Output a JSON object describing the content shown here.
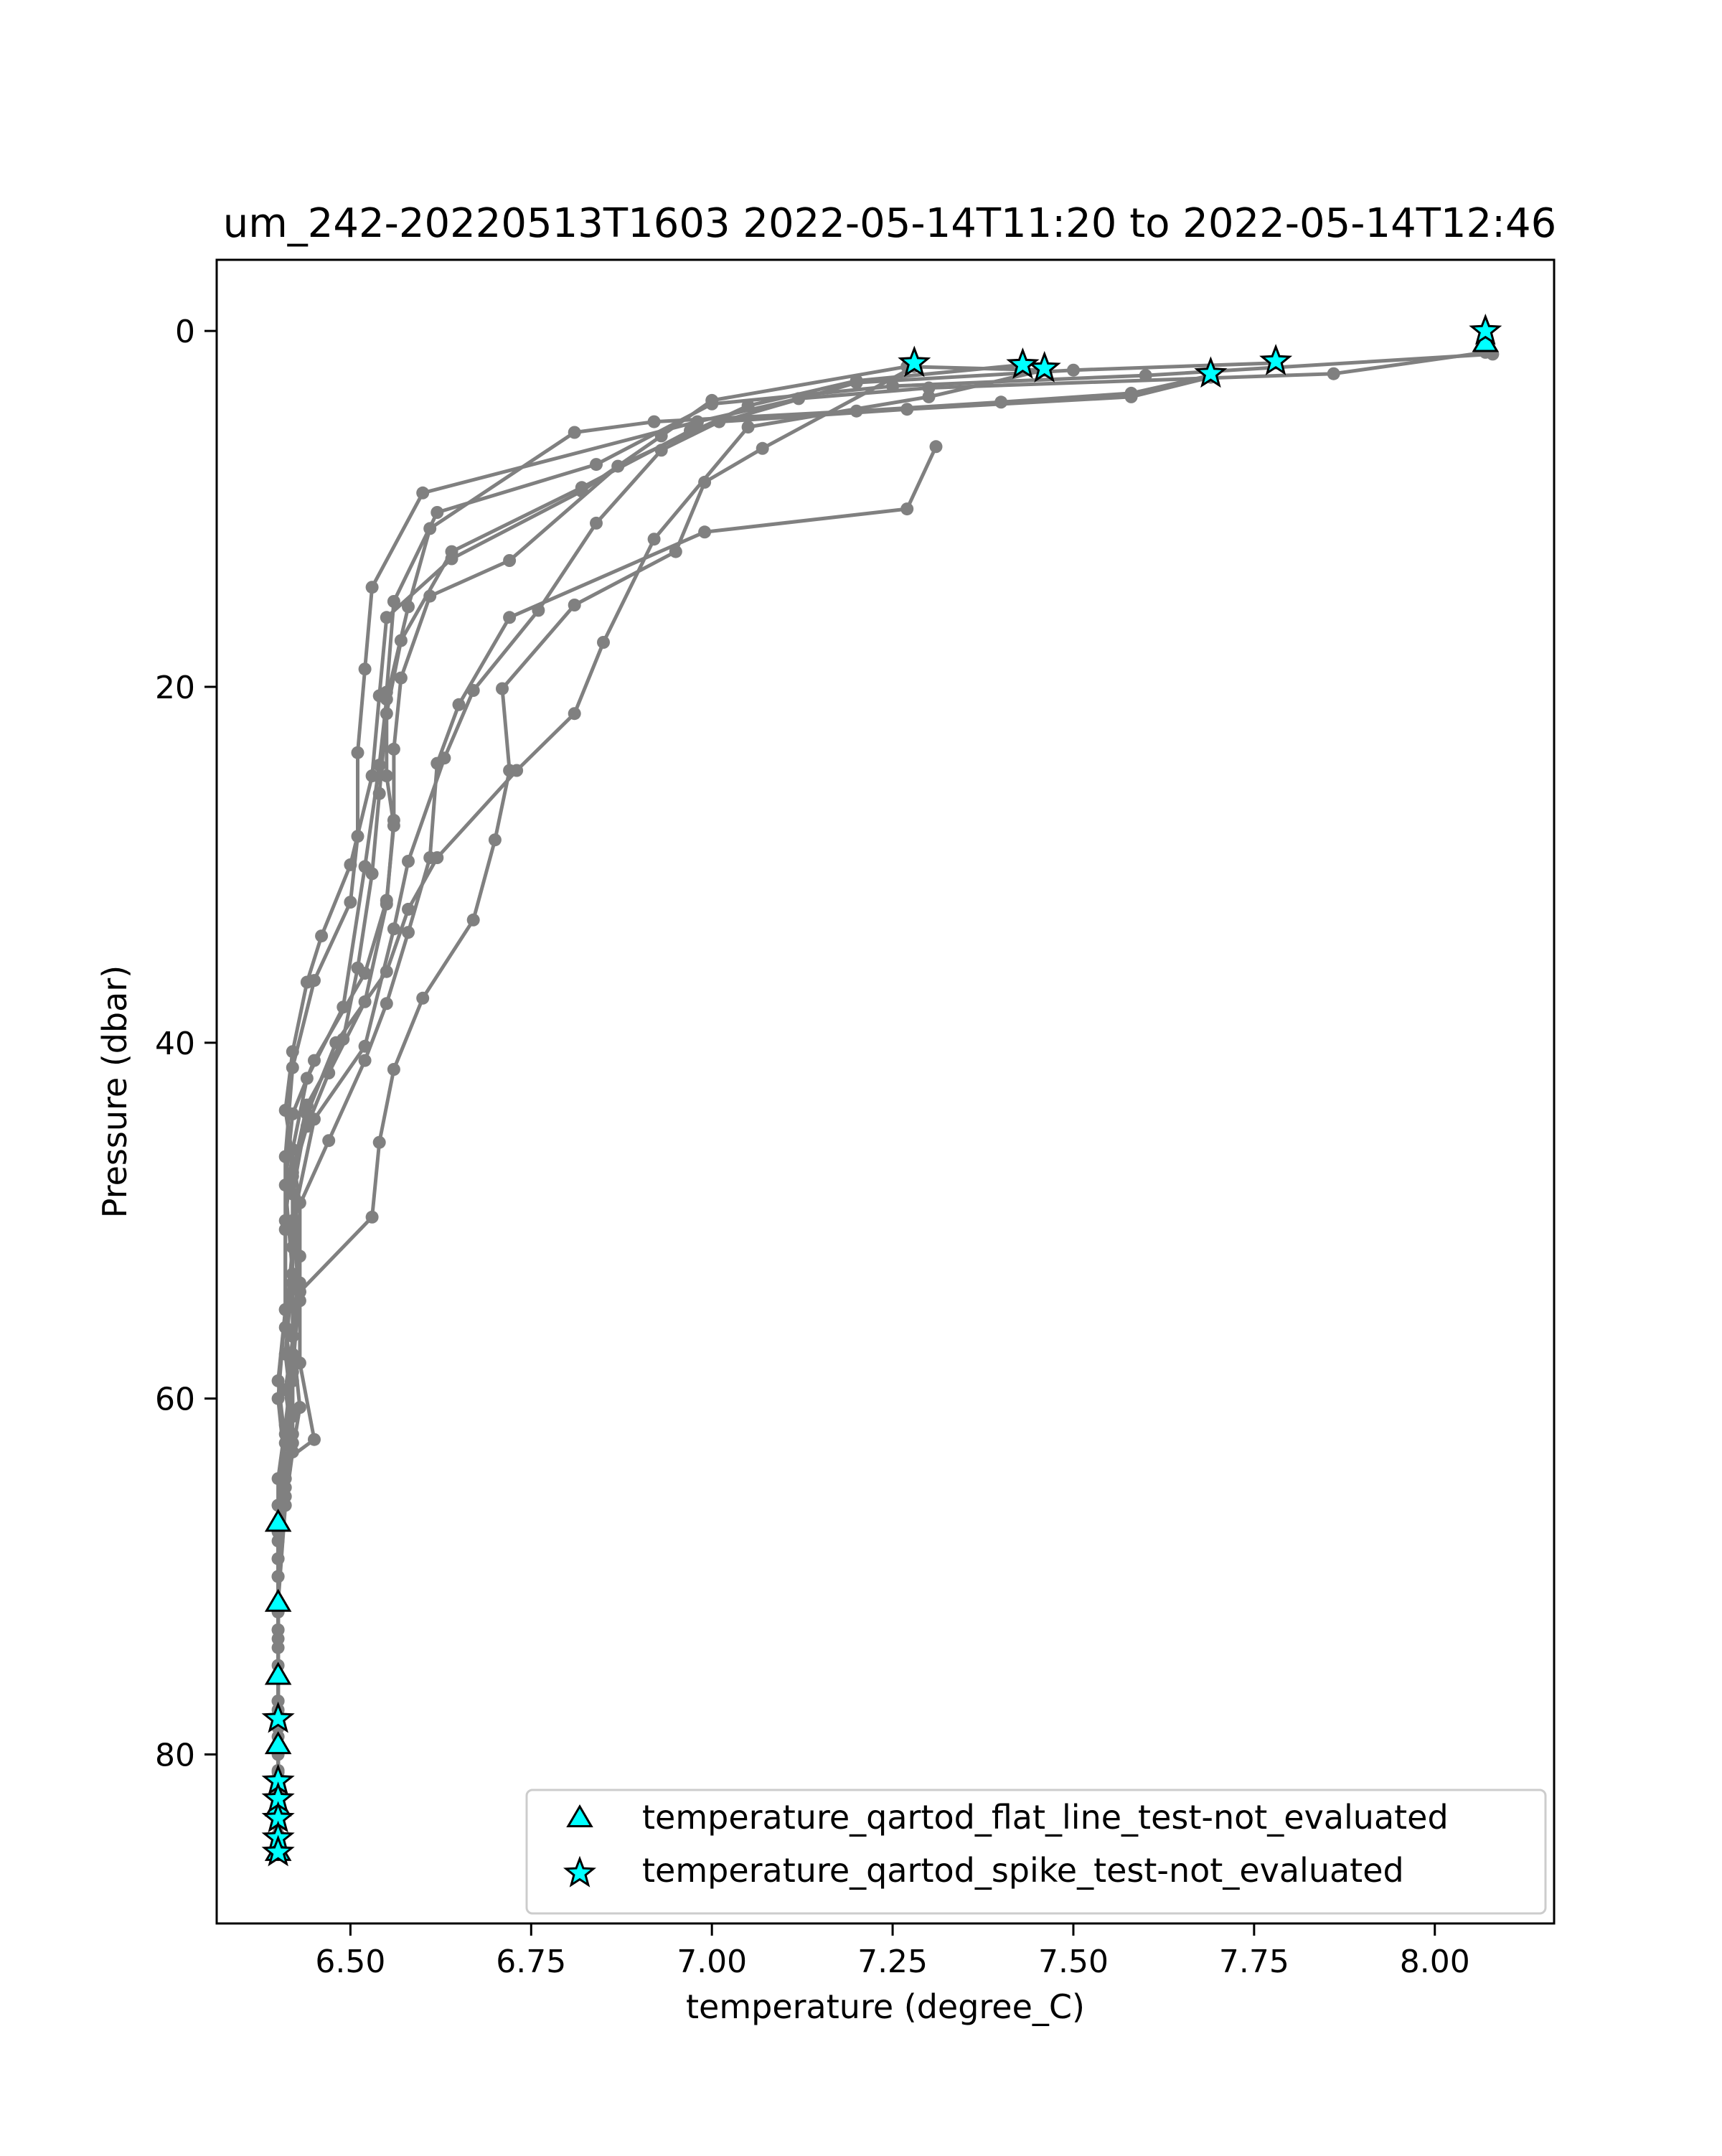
{
  "chart_data": {
    "type": "line",
    "title": "um_242-20220513T1603 2022-05-14T11:20 to 2022-05-14T12:46",
    "xlabel": "temperature (degree_C)",
    "ylabel": "Pressure (dbar)",
    "xlim": [
      6.315,
      8.165
    ],
    "ylim": [
      89.5,
      -4.0
    ],
    "y_inverted": true,
    "xticks": [
      6.5,
      6.75,
      7.0,
      7.25,
      7.5,
      7.75,
      8.0
    ],
    "xtick_labels": [
      "6.50",
      "6.75",
      "7.00",
      "7.25",
      "7.50",
      "7.75",
      "8.00"
    ],
    "yticks": [
      0,
      20,
      40,
      60,
      80
    ],
    "ytick_labels": [
      "0",
      "20",
      "40",
      "60",
      "80"
    ],
    "grid": false,
    "legend_position": "lower-right",
    "colors": {
      "profile_line": "#808080",
      "marker_fill": "#00ffff",
      "marker_edge": "#000000"
    },
    "series": [
      {
        "values": [
          [
            8.07,
            1.2
          ],
          [
            7.86,
            2.4
          ],
          [
            7.3,
            3.2
          ],
          [
            7.12,
            3.8
          ],
          [
            6.98,
            5.1
          ],
          [
            6.6,
            9.1
          ],
          [
            6.53,
            14.4
          ],
          [
            6.52,
            19.0
          ],
          [
            6.51,
            23.7
          ],
          [
            6.51,
            28.4
          ],
          [
            6.5,
            32.1
          ],
          [
            6.45,
            36.5
          ],
          [
            6.42,
            41.4
          ],
          [
            6.41,
            46.4
          ],
          [
            6.41,
            50.5
          ],
          [
            6.41,
            55.0
          ],
          [
            6.4,
            60.0
          ],
          [
            6.41,
            64.0
          ],
          [
            6.4,
            67.0
          ],
          [
            6.4,
            71.5
          ],
          [
            6.4,
            75.6
          ],
          [
            6.4,
            78.0
          ],
          [
            6.4,
            79.5
          ],
          [
            6.4,
            81.7
          ]
        ]
      },
      {
        "values": [
          [
            8.08,
            1.3
          ],
          [
            7.6,
            2.5
          ],
          [
            7.25,
            3.1
          ],
          [
            7.0,
            4.1
          ],
          [
            6.84,
            7.5
          ],
          [
            6.62,
            10.2
          ],
          [
            6.56,
            15.2
          ],
          [
            6.55,
            20.3
          ],
          [
            6.55,
            25.0
          ],
          [
            6.56,
            27.8
          ],
          [
            6.55,
            32.0
          ],
          [
            6.52,
            36.1
          ],
          [
            6.45,
            41.0
          ],
          [
            6.42,
            44.0
          ],
          [
            6.41,
            48.0
          ],
          [
            6.42,
            53.0
          ],
          [
            6.41,
            57.5
          ],
          [
            6.42,
            61.0
          ],
          [
            6.41,
            64.5
          ],
          [
            6.4,
            70.0
          ],
          [
            6.4,
            74.0
          ],
          [
            6.4,
            78.0
          ],
          [
            6.4,
            82.0
          ],
          [
            6.4,
            84.5
          ]
        ]
      },
      {
        "values": [
          [
            7.78,
            1.8
          ],
          [
            7.5,
            2.2
          ],
          [
            7.2,
            2.9
          ],
          [
            6.97,
            5.6
          ],
          [
            6.82,
            8.8
          ],
          [
            6.64,
            12.4
          ],
          [
            6.57,
            17.4
          ],
          [
            6.55,
            21.5
          ],
          [
            6.54,
            26.0
          ],
          [
            6.53,
            30.5
          ],
          [
            6.51,
            35.8
          ],
          [
            6.49,
            39.8
          ],
          [
            6.44,
            43.5
          ],
          [
            6.42,
            47.3
          ],
          [
            6.43,
            52.0
          ],
          [
            6.42,
            56.5
          ],
          [
            6.43,
            60.5
          ],
          [
            6.42,
            63.0
          ],
          [
            6.41,
            66.0
          ],
          [
            6.4,
            71.5
          ],
          [
            6.4,
            75.6
          ],
          [
            6.4,
            79.5
          ],
          [
            6.4,
            83.0
          ],
          [
            6.4,
            85.2
          ]
        ]
      },
      {
        "values": [
          [
            7.69,
            2.5
          ],
          [
            7.58,
            3.5
          ],
          [
            7.4,
            4.0
          ],
          [
            7.2,
            4.5
          ],
          [
            6.92,
            5.1
          ],
          [
            6.81,
            5.7
          ],
          [
            6.61,
            11.1
          ],
          [
            6.58,
            15.5
          ],
          [
            6.55,
            20.7
          ],
          [
            6.54,
            24.4
          ],
          [
            6.52,
            30.1
          ],
          [
            6.49,
            38.0
          ],
          [
            6.44,
            42.0
          ],
          [
            6.42,
            46.0
          ],
          [
            6.41,
            50.0
          ],
          [
            6.41,
            55.0
          ],
          [
            6.4,
            59.0
          ],
          [
            6.41,
            62.5
          ],
          [
            6.4,
            66.0
          ],
          [
            6.4,
            71.5
          ],
          [
            6.4,
            75.6
          ],
          [
            6.4,
            79.5
          ],
          [
            6.4,
            82.5
          ],
          [
            6.4,
            85.0
          ]
        ]
      },
      {
        "values": [
          [
            7.46,
            2.2
          ],
          [
            7.27,
            2.0
          ],
          [
            7.0,
            3.9
          ],
          [
            6.93,
            5.9
          ],
          [
            6.82,
            9.0
          ],
          [
            6.64,
            12.8
          ],
          [
            6.55,
            16.1
          ],
          [
            6.54,
            20.5
          ],
          [
            6.53,
            25.0
          ],
          [
            6.5,
            30.0
          ],
          [
            6.46,
            34.0
          ],
          [
            6.44,
            36.6
          ],
          [
            6.42,
            40.5
          ],
          [
            6.41,
            43.8
          ],
          [
            6.43,
            49.0
          ],
          [
            6.43,
            54.0
          ],
          [
            6.41,
            59.5
          ],
          [
            6.42,
            62.5
          ],
          [
            6.41,
            65.5
          ],
          [
            6.4,
            69.0
          ],
          [
            6.4,
            73.0
          ],
          [
            6.4,
            77.0
          ],
          [
            6.4,
            81.5
          ],
          [
            6.4,
            85.3
          ]
        ]
      },
      {
        "values": [
          [
            7.43,
            1.9
          ],
          [
            7.2,
            2.8
          ],
          [
            7.05,
            4.2
          ],
          [
            6.87,
            7.6
          ],
          [
            6.72,
            12.9
          ],
          [
            6.61,
            14.9
          ],
          [
            6.57,
            19.5
          ],
          [
            6.56,
            23.5
          ],
          [
            6.56,
            27.5
          ],
          [
            6.55,
            32.2
          ],
          [
            6.52,
            37.7
          ],
          [
            6.47,
            41.7
          ],
          [
            6.44,
            44.7
          ],
          [
            6.42,
            47.5
          ],
          [
            6.42,
            51.5
          ],
          [
            6.41,
            56.0
          ],
          [
            6.42,
            59.0
          ],
          [
            6.41,
            62.0
          ],
          [
            6.4,
            66.0
          ],
          [
            6.4,
            70.0
          ],
          [
            6.4,
            73.5
          ],
          [
            6.4,
            77.5
          ],
          [
            6.4,
            81.0
          ],
          [
            6.4,
            84.0
          ]
        ]
      },
      {
        "values": [
          [
            7.69,
            2.6
          ],
          [
            7.58,
            3.7
          ],
          [
            7.27,
            4.4
          ],
          [
            7.01,
            5.1
          ],
          [
            6.93,
            6.7
          ],
          [
            6.84,
            10.8
          ],
          [
            6.76,
            15.7
          ],
          [
            6.67,
            20.2
          ],
          [
            6.63,
            24.0
          ],
          [
            6.58,
            29.8
          ],
          [
            6.56,
            33.6
          ],
          [
            6.52,
            40.2
          ],
          [
            6.45,
            44.3
          ],
          [
            6.42,
            50.1
          ],
          [
            6.43,
            54.5
          ],
          [
            6.43,
            58.0
          ],
          [
            6.45,
            62.3
          ],
          [
            6.41,
            63.5
          ],
          [
            6.4,
            67.0
          ],
          [
            6.4,
            71.5
          ],
          [
            6.4,
            75.6
          ],
          [
            6.4,
            79.5
          ],
          [
            6.4,
            82.0
          ],
          [
            6.4,
            85.0
          ]
        ]
      },
      {
        "values": [
          [
            7.28,
            2.0
          ],
          [
            7.07,
            6.6
          ],
          [
            6.99,
            8.5
          ],
          [
            6.95,
            12.4
          ],
          [
            6.81,
            15.4
          ],
          [
            6.71,
            20.1
          ],
          [
            6.72,
            24.7
          ],
          [
            6.7,
            28.6
          ],
          [
            6.67,
            33.1
          ],
          [
            6.6,
            37.5
          ],
          [
            6.56,
            41.5
          ],
          [
            6.54,
            45.6
          ],
          [
            6.53,
            49.8
          ],
          [
            6.43,
            54.0
          ],
          [
            6.42,
            57.5
          ],
          [
            6.42,
            61.0
          ],
          [
            6.41,
            64.0
          ],
          [
            6.4,
            67.5
          ],
          [
            6.4,
            71.5
          ],
          [
            6.4,
            75.6
          ],
          [
            6.4,
            78.5
          ],
          [
            6.4,
            80.9
          ],
          [
            6.4,
            83.5
          ],
          [
            6.4,
            85.6
          ]
        ]
      },
      {
        "values": [
          [
            7.31,
            6.5
          ],
          [
            7.27,
            10.0
          ],
          [
            6.99,
            11.3
          ],
          [
            6.72,
            16.1
          ],
          [
            6.65,
            21.0
          ],
          [
            6.62,
            24.3
          ],
          [
            6.61,
            29.6
          ],
          [
            6.58,
            33.8
          ],
          [
            6.55,
            37.8
          ],
          [
            6.52,
            41.0
          ],
          [
            6.47,
            45.5
          ],
          [
            6.42,
            50.0
          ],
          [
            6.42,
            53.5
          ],
          [
            6.42,
            58.0
          ],
          [
            6.41,
            61.5
          ],
          [
            6.4,
            64.5
          ],
          [
            6.4,
            68.0
          ],
          [
            6.4,
            72.0
          ],
          [
            6.4,
            75.0
          ],
          [
            6.4,
            79.0
          ],
          [
            6.4,
            82.0
          ],
          [
            6.4,
            85.0
          ]
        ]
      },
      {
        "values": [
          [
            7.46,
            2.2
          ],
          [
            7.3,
            3.7
          ],
          [
            7.05,
            5.4
          ],
          [
            6.92,
            11.7
          ],
          [
            6.85,
            17.5
          ],
          [
            6.81,
            21.5
          ],
          [
            6.73,
            24.7
          ],
          [
            6.62,
            29.6
          ],
          [
            6.58,
            32.5
          ],
          [
            6.55,
            36.0
          ],
          [
            6.48,
            40.0
          ],
          [
            6.44,
            44.0
          ],
          [
            6.42,
            48.5
          ],
          [
            6.43,
            53.5
          ],
          [
            6.42,
            58.5
          ],
          [
            6.42,
            62.0
          ],
          [
            6.41,
            65.0
          ],
          [
            6.4,
            69.0
          ],
          [
            6.4,
            73.0
          ],
          [
            6.4,
            77.0
          ],
          [
            6.4,
            80.0
          ],
          [
            6.4,
            83.0
          ],
          [
            6.4,
            85.4
          ]
        ]
      }
    ],
    "flagged_points": [
      {
        "legend": "temperature_qartod_flat_line_test-not_evaluated",
        "marker": "triangle",
        "points": [
          [
            8.07,
            0.7
          ],
          [
            6.4,
            67.0
          ],
          [
            6.4,
            71.5
          ],
          [
            6.4,
            75.6
          ],
          [
            6.4,
            79.5
          ],
          [
            6.4,
            83.0
          ],
          [
            6.4,
            85.5
          ]
        ]
      },
      {
        "legend": "temperature_qartod_spike_test-not_evaluated",
        "marker": "star",
        "points": [
          [
            8.07,
            0.0
          ],
          [
            7.78,
            1.7
          ],
          [
            7.69,
            2.4
          ],
          [
            7.46,
            2.1
          ],
          [
            7.43,
            1.9
          ],
          [
            7.28,
            1.8
          ],
          [
            6.4,
            78.0
          ],
          [
            6.4,
            81.5
          ],
          [
            6.4,
            82.5
          ],
          [
            6.4,
            83.6
          ],
          [
            6.4,
            84.7
          ],
          [
            6.4,
            85.5
          ]
        ]
      }
    ]
  }
}
